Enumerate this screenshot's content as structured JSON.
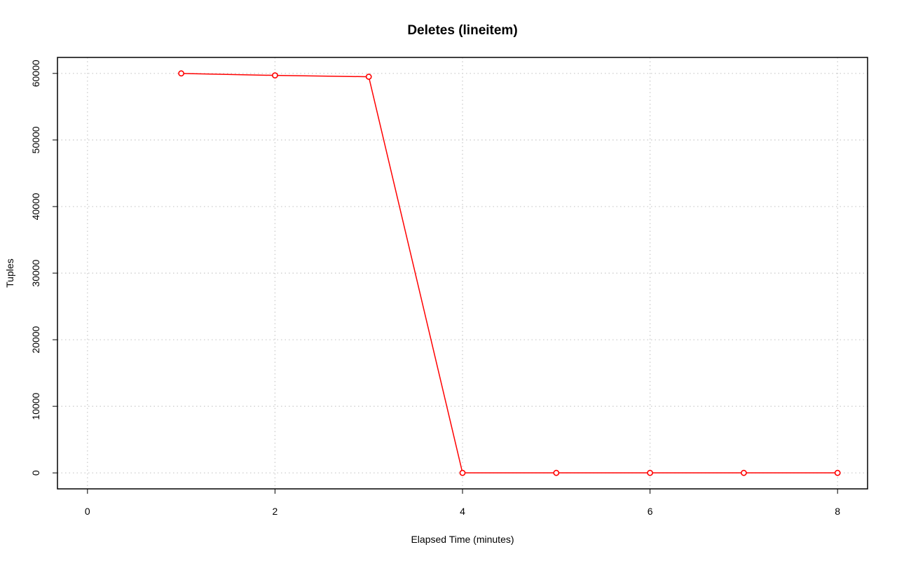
{
  "chart_data": {
    "type": "line",
    "title": "Deletes (lineitem)",
    "xlabel": "Elapsed Time (minutes)",
    "ylabel": "Tuples",
    "x": [
      1,
      2,
      3,
      4,
      5,
      6,
      7,
      8
    ],
    "values": [
      60000,
      59700,
      59500,
      0,
      0,
      0,
      0,
      0
    ],
    "color": "#ff0000",
    "xlim": [
      -0.32,
      8.32
    ],
    "ylim": [
      -2400,
      62400
    ],
    "xticks": [
      0,
      2,
      4,
      6,
      8
    ],
    "yticks": [
      0,
      10000,
      20000,
      30000,
      40000,
      50000,
      60000
    ],
    "grid": true
  }
}
